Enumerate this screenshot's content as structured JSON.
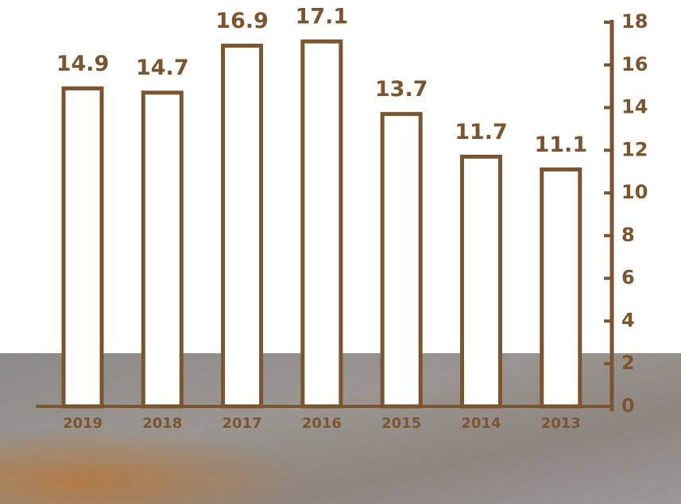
{
  "chart_data": {
    "type": "bar",
    "categories": [
      "2019",
      "2018",
      "2017",
      "2016",
      "2015",
      "2014",
      "2013"
    ],
    "values": [
      14.9,
      14.7,
      16.9,
      17.1,
      13.7,
      11.7,
      11.1
    ],
    "color": "#7a5530",
    "ylim": [
      0,
      18
    ],
    "yticks": [
      0,
      2,
      4,
      6,
      8,
      10,
      12,
      14,
      16,
      18
    ],
    "y_axis_side": "right"
  }
}
